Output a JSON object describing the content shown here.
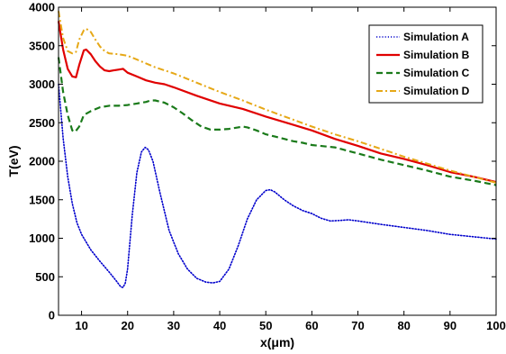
{
  "chart_data": {
    "type": "line",
    "title": "",
    "xlabel": "x(μm)",
    "ylabel": "T(eV)",
    "xlim": [
      5,
      100
    ],
    "ylim": [
      0,
      4000
    ],
    "x_ticks": [
      10,
      20,
      30,
      40,
      50,
      60,
      70,
      80,
      90,
      100
    ],
    "y_ticks": [
      0,
      500,
      1000,
      1500,
      2000,
      2500,
      3000,
      3500,
      4000
    ],
    "grid": false,
    "legend_position": "top-right",
    "series": [
      {
        "name": "Simulation A",
        "color": "#0000cc",
        "style": "dotted",
        "points": [
          [
            5,
            3000
          ],
          [
            6,
            2300
          ],
          [
            7,
            1800
          ],
          [
            8,
            1450
          ],
          [
            9,
            1200
          ],
          [
            10,
            1050
          ],
          [
            12,
            850
          ],
          [
            14,
            700
          ],
          [
            16,
            560
          ],
          [
            17.5,
            450
          ],
          [
            18.5,
            370
          ],
          [
            19,
            360
          ],
          [
            19.5,
            420
          ],
          [
            20,
            600
          ],
          [
            21,
            1300
          ],
          [
            22,
            1850
          ],
          [
            23,
            2120
          ],
          [
            23.8,
            2180
          ],
          [
            24.5,
            2150
          ],
          [
            25.5,
            2000
          ],
          [
            27,
            1600
          ],
          [
            29,
            1100
          ],
          [
            31,
            800
          ],
          [
            33,
            600
          ],
          [
            35,
            480
          ],
          [
            37,
            430
          ],
          [
            38.5,
            420
          ],
          [
            40,
            440
          ],
          [
            42,
            600
          ],
          [
            44,
            900
          ],
          [
            46,
            1250
          ],
          [
            48,
            1500
          ],
          [
            50,
            1620
          ],
          [
            51,
            1630
          ],
          [
            52,
            1600
          ],
          [
            54,
            1500
          ],
          [
            56,
            1420
          ],
          [
            58,
            1360
          ],
          [
            60,
            1320
          ],
          [
            62,
            1260
          ],
          [
            64,
            1225
          ],
          [
            66,
            1230
          ],
          [
            68,
            1240
          ],
          [
            70,
            1225
          ],
          [
            75,
            1180
          ],
          [
            80,
            1140
          ],
          [
            85,
            1100
          ],
          [
            90,
            1050
          ],
          [
            95,
            1020
          ],
          [
            100,
            990
          ]
        ]
      },
      {
        "name": "Simulation B",
        "color": "#e00000",
        "style": "solid",
        "points": [
          [
            5,
            3820
          ],
          [
            6,
            3450
          ],
          [
            7,
            3200
          ],
          [
            8,
            3100
          ],
          [
            8.8,
            3090
          ],
          [
            9.5,
            3250
          ],
          [
            10.5,
            3440
          ],
          [
            11,
            3450
          ],
          [
            12,
            3390
          ],
          [
            13,
            3300
          ],
          [
            14,
            3230
          ],
          [
            15,
            3180
          ],
          [
            16,
            3170
          ],
          [
            17,
            3180
          ],
          [
            18,
            3190
          ],
          [
            19,
            3200
          ],
          [
            20,
            3150
          ],
          [
            22,
            3100
          ],
          [
            24,
            3050
          ],
          [
            26,
            3020
          ],
          [
            28,
            3000
          ],
          [
            30,
            2960
          ],
          [
            35,
            2850
          ],
          [
            40,
            2750
          ],
          [
            45,
            2680
          ],
          [
            50,
            2580
          ],
          [
            55,
            2490
          ],
          [
            60,
            2400
          ],
          [
            65,
            2290
          ],
          [
            70,
            2200
          ],
          [
            75,
            2100
          ],
          [
            80,
            2030
          ],
          [
            85,
            1950
          ],
          [
            90,
            1860
          ],
          [
            95,
            1800
          ],
          [
            100,
            1730
          ]
        ]
      },
      {
        "name": "Simulation C",
        "color": "#1a7a1a",
        "style": "dashed",
        "points": [
          [
            5,
            3350
          ],
          [
            6,
            2900
          ],
          [
            7,
            2600
          ],
          [
            8,
            2400
          ],
          [
            8.6,
            2380
          ],
          [
            9.5,
            2450
          ],
          [
            10.5,
            2600
          ],
          [
            12,
            2650
          ],
          [
            14,
            2700
          ],
          [
            16,
            2720
          ],
          [
            18,
            2720
          ],
          [
            20,
            2730
          ],
          [
            22,
            2750
          ],
          [
            24,
            2770
          ],
          [
            25,
            2790
          ],
          [
            26,
            2790
          ],
          [
            28,
            2760
          ],
          [
            30,
            2700
          ],
          [
            32,
            2620
          ],
          [
            34,
            2530
          ],
          [
            36,
            2450
          ],
          [
            38,
            2410
          ],
          [
            40,
            2410
          ],
          [
            42,
            2420
          ],
          [
            44,
            2440
          ],
          [
            45,
            2450
          ],
          [
            46,
            2440
          ],
          [
            48,
            2400
          ],
          [
            50,
            2350
          ],
          [
            52,
            2320
          ],
          [
            54,
            2290
          ],
          [
            56,
            2260
          ],
          [
            58,
            2240
          ],
          [
            60,
            2210
          ],
          [
            65,
            2180
          ],
          [
            70,
            2100
          ],
          [
            75,
            2020
          ],
          [
            80,
            1950
          ],
          [
            85,
            1880
          ],
          [
            90,
            1800
          ],
          [
            95,
            1750
          ],
          [
            100,
            1690
          ]
        ]
      },
      {
        "name": "Simulation D",
        "color": "#e6a817",
        "style": "dashdot",
        "points": [
          [
            5,
            3950
          ],
          [
            6,
            3600
          ],
          [
            7,
            3430
          ],
          [
            8,
            3400
          ],
          [
            8.8,
            3420
          ],
          [
            9.5,
            3580
          ],
          [
            10.5,
            3700
          ],
          [
            11,
            3720
          ],
          [
            12,
            3680
          ],
          [
            13,
            3580
          ],
          [
            14,
            3490
          ],
          [
            15,
            3430
          ],
          [
            16,
            3400
          ],
          [
            18,
            3390
          ],
          [
            20,
            3370
          ],
          [
            22,
            3320
          ],
          [
            24,
            3270
          ],
          [
            26,
            3220
          ],
          [
            28,
            3180
          ],
          [
            30,
            3140
          ],
          [
            35,
            3020
          ],
          [
            40,
            2900
          ],
          [
            45,
            2790
          ],
          [
            50,
            2670
          ],
          [
            55,
            2560
          ],
          [
            60,
            2450
          ],
          [
            65,
            2350
          ],
          [
            70,
            2260
          ],
          [
            75,
            2160
          ],
          [
            80,
            2060
          ],
          [
            85,
            1970
          ],
          [
            90,
            1880
          ],
          [
            95,
            1800
          ],
          [
            100,
            1720
          ]
        ]
      }
    ]
  }
}
